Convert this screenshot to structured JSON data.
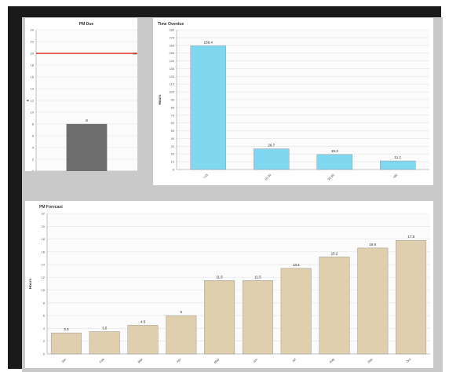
{
  "chart_data": [
    {
      "type": "bar",
      "title": "PM Due",
      "xlabel": "",
      "ylabel": "#",
      "categories": [
        ""
      ],
      "values": [
        8
      ],
      "data_labels": [
        "8"
      ],
      "ylim": [
        0,
        24
      ],
      "yticks": [
        0,
        2,
        4,
        6,
        8,
        10,
        12,
        14,
        16,
        18,
        20,
        22,
        24
      ],
      "reference_line": {
        "value": 20,
        "label": "20",
        "color": "#e03030"
      },
      "bar_color": "#6e6e6e",
      "grid": true,
      "legend": "none"
    },
    {
      "type": "bar",
      "title": "Time Overdue",
      "xlabel": "",
      "ylabel": "Hours",
      "categories": [
        "<15",
        "15-30",
        "30-60",
        ">60"
      ],
      "values": [
        159.4,
        26.7,
        19.3,
        11.1
      ],
      "data_labels": [
        "159.4",
        "26.7",
        "19.3",
        "11.1"
      ],
      "ylim": [
        0,
        180
      ],
      "yticks": [
        0,
        10,
        20,
        30,
        40,
        50,
        60,
        70,
        80,
        90,
        100,
        110,
        120,
        130,
        140,
        150,
        160,
        170,
        180
      ],
      "bar_color": "#7fd8f0",
      "grid": true,
      "legend": "none"
    },
    {
      "type": "bar",
      "title": "PM Forecast",
      "xlabel": "",
      "ylabel": "Hours",
      "categories": [
        "Jan",
        "Feb",
        "Mar",
        "Apr",
        "May",
        "Jun",
        "Jul",
        "Aug",
        "Sep",
        "Oct"
      ],
      "values": [
        3.3,
        3.5,
        4.5,
        6,
        11.5,
        11.5,
        13.4,
        15.2,
        16.6,
        17.8
      ],
      "data_labels": [
        "3.3",
        "3.5",
        "4.5",
        "6",
        "11.5",
        "11.5",
        "13.4",
        "15.2",
        "16.6",
        "17.8"
      ],
      "ylim": [
        0,
        22
      ],
      "yticks": [
        0,
        2,
        4,
        6,
        8,
        10,
        12,
        14,
        16,
        18,
        20,
        22
      ],
      "bar_color": "#e0cfae",
      "grid": true,
      "legend": "none"
    }
  ]
}
